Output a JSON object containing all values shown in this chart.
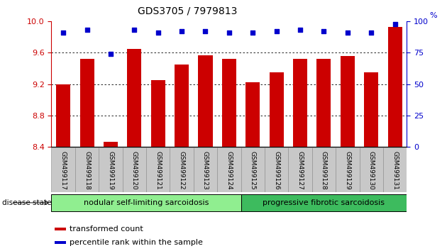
{
  "title": "GDS3705 / 7979813",
  "categories": [
    "GSM499117",
    "GSM499118",
    "GSM499119",
    "GSM499120",
    "GSM499121",
    "GSM499122",
    "GSM499123",
    "GSM499124",
    "GSM499125",
    "GSM499126",
    "GSM499127",
    "GSM499128",
    "GSM499129",
    "GSM499130",
    "GSM499131"
  ],
  "bar_values": [
    9.2,
    9.52,
    8.46,
    9.65,
    9.25,
    9.45,
    9.57,
    9.52,
    9.22,
    9.35,
    9.52,
    9.52,
    9.56,
    9.35,
    9.93
  ],
  "percentile_values": [
    91,
    93,
    74,
    93,
    91,
    92,
    92,
    91,
    91,
    92,
    93,
    92,
    91,
    91,
    98
  ],
  "bar_color": "#cc0000",
  "dot_color": "#0000cc",
  "ylim_left": [
    8.4,
    10.0
  ],
  "ylim_right": [
    0,
    100
  ],
  "yticks_left": [
    8.4,
    8.8,
    9.2,
    9.6,
    10.0
  ],
  "yticks_right": [
    0,
    25,
    50,
    75,
    100
  ],
  "grid_values": [
    8.8,
    9.2,
    9.6
  ],
  "group1_label": "nodular self-limiting sarcoidosis",
  "group1_count": 8,
  "group2_label": "progressive fibrotic sarcoidosis",
  "group2_count": 7,
  "disease_state_label": "disease state",
  "legend_bar_label": "transformed count",
  "legend_dot_label": "percentile rank within the sample",
  "group1_color": "#90ee90",
  "group2_color": "#3dbb5e",
  "xlabel_color": "#cc0000",
  "right_axis_color": "#0000cc",
  "bar_width": 0.6,
  "tick_bg_color": "#c8c8c8",
  "background_color": "#ffffff"
}
